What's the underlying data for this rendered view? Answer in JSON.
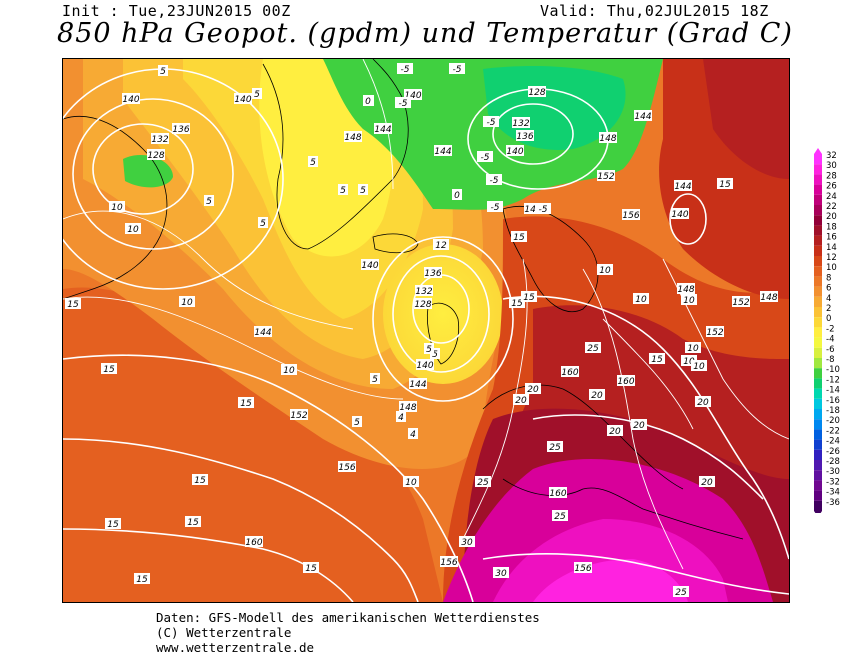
{
  "header": {
    "init": "Init : Tue,23JUN2015 00Z",
    "valid": "Valid: Thu,02JUL2015 18Z",
    "title": "850 hPa Geopot. (gpdm) und Temperatur (Grad C)"
  },
  "legend": {
    "values": [
      32,
      30,
      28,
      26,
      24,
      22,
      20,
      18,
      16,
      14,
      12,
      10,
      8,
      6,
      4,
      2,
      0,
      -2,
      -4,
      -6,
      -8,
      -10,
      -12,
      -14,
      -16,
      -18,
      -20,
      -22,
      -24,
      -26,
      -28,
      -30,
      -32,
      -34,
      -36
    ],
    "colors": [
      "#ff33ff",
      "#ff22e0",
      "#ee10c0",
      "#d8009a",
      "#c0007a",
      "#a8005a",
      "#920038",
      "#a0102a",
      "#b52020",
      "#c83018",
      "#d84818",
      "#e46020",
      "#ec7828",
      "#f29030",
      "#f7aa34",
      "#fbc236",
      "#fcd838",
      "#ffee40",
      "#f4f840",
      "#d8f040",
      "#a0e840",
      "#40d040",
      "#10d070",
      "#00d8b0",
      "#00c8e0",
      "#00a8f0",
      "#0088f0",
      "#0060e0",
      "#1040d0",
      "#3020c0",
      "#5018b0",
      "#6010a0",
      "#700890",
      "#600080",
      "#400060"
    ]
  },
  "map": {
    "geopotential_labels": [
      {
        "t": "140"
      },
      {
        "t": "136"
      },
      {
        "t": "132"
      },
      {
        "t": "128"
      },
      {
        "t": "140"
      },
      {
        "t": "144"
      },
      {
        "t": "148"
      },
      {
        "t": "140"
      },
      {
        "t": "144"
      },
      {
        "t": "128"
      },
      {
        "t": "132"
      },
      {
        "t": "136"
      },
      {
        "t": "140"
      },
      {
        "t": "148"
      },
      {
        "t": "144"
      },
      {
        "t": "152"
      },
      {
        "t": "156"
      },
      {
        "t": "144"
      },
      {
        "t": "140"
      },
      {
        "t": "140"
      },
      {
        "t": "144"
      },
      {
        "t": "136"
      },
      {
        "t": "132"
      },
      {
        "t": "128"
      },
      {
        "t": "140"
      },
      {
        "t": "144"
      },
      {
        "t": "148"
      },
      {
        "t": "152"
      },
      {
        "t": "156"
      },
      {
        "t": "160"
      },
      {
        "t": "160"
      },
      {
        "t": "160"
      },
      {
        "t": "156"
      },
      {
        "t": "156"
      },
      {
        "t": "148"
      },
      {
        "t": "152"
      },
      {
        "t": "148"
      },
      {
        "t": "152"
      },
      {
        "t": "160"
      },
      {
        "t": "144"
      }
    ],
    "temperature_labels": [
      {
        "t": "5"
      },
      {
        "t": "5"
      },
      {
        "t": "5"
      },
      {
        "t": "5"
      },
      {
        "t": "0"
      },
      {
        "t": "-5"
      },
      {
        "t": "-5"
      },
      {
        "t": "-5"
      },
      {
        "t": "5"
      },
      {
        "t": "5"
      },
      {
        "t": "10"
      },
      {
        "t": "10"
      },
      {
        "t": "15"
      },
      {
        "t": "10"
      },
      {
        "t": "10"
      },
      {
        "t": "15"
      },
      {
        "t": "15"
      },
      {
        "t": "15"
      },
      {
        "t": "15"
      },
      {
        "t": "10"
      },
      {
        "t": "15"
      },
      {
        "t": "15"
      },
      {
        "t": "15"
      },
      {
        "t": "5"
      },
      {
        "t": "5"
      },
      {
        "t": "5"
      },
      {
        "t": "0"
      },
      {
        "t": "0"
      },
      {
        "t": "-5"
      },
      {
        "t": "-5"
      },
      {
        "t": "-5"
      },
      {
        "t": "-5"
      },
      {
        "t": "-5"
      },
      {
        "t": "15"
      },
      {
        "t": "15"
      },
      {
        "t": "12"
      },
      {
        "t": "10"
      },
      {
        "t": "10"
      },
      {
        "t": "10"
      },
      {
        "t": "10"
      },
      {
        "t": "10"
      },
      {
        "t": "10"
      },
      {
        "t": "20"
      },
      {
        "t": "20"
      },
      {
        "t": "20"
      },
      {
        "t": "25"
      },
      {
        "t": "20"
      },
      {
        "t": "20"
      },
      {
        "t": "20"
      },
      {
        "t": "25"
      },
      {
        "t": "25"
      },
      {
        "t": "30"
      },
      {
        "t": "30"
      },
      {
        "t": "25"
      },
      {
        "t": "25"
      },
      {
        "t": "20"
      },
      {
        "t": "15"
      },
      {
        "t": "15"
      },
      {
        "t": "15"
      },
      {
        "t": "5"
      },
      {
        "t": "5"
      },
      {
        "t": "4"
      },
      {
        "t": "4"
      }
    ]
  },
  "footer": {
    "source": "Daten: GFS-Modell des amerikanischen Wetterdienstes",
    "copyright": "(C) Wetterzentrale",
    "url": "www.wetterzentrale.de"
  }
}
